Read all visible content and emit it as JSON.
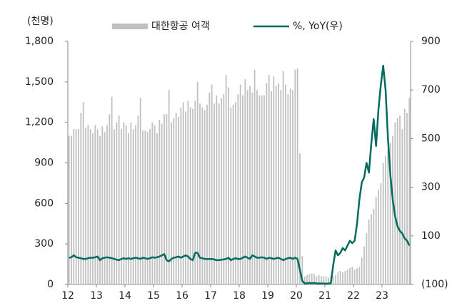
{
  "chart_data": {
    "type": "bar",
    "y_label": "(천명)",
    "categories": [
      "12",
      null,
      null,
      null,
      null,
      null,
      null,
      null,
      null,
      null,
      null,
      null,
      "13",
      null,
      null,
      null,
      null,
      null,
      null,
      null,
      null,
      null,
      null,
      null,
      "14",
      null,
      null,
      null,
      null,
      null,
      null,
      null,
      null,
      null,
      null,
      null,
      "15",
      null,
      null,
      null,
      null,
      null,
      null,
      null,
      null,
      null,
      null,
      null,
      "16",
      null,
      null,
      null,
      null,
      null,
      null,
      null,
      null,
      null,
      null,
      null,
      "17",
      null,
      null,
      null,
      null,
      null,
      null,
      null,
      null,
      null,
      null,
      null,
      "18",
      null,
      null,
      null,
      null,
      null,
      null,
      null,
      null,
      null,
      null,
      null,
      "19",
      null,
      null,
      null,
      null,
      null,
      null,
      null,
      null,
      null,
      null,
      null,
      "20",
      null,
      null,
      null,
      null,
      null,
      null,
      null,
      null,
      null,
      null,
      null,
      "21",
      null,
      null,
      null,
      null,
      null,
      null,
      null,
      null,
      null,
      null,
      null,
      "22",
      null,
      null,
      null,
      null,
      null,
      null,
      null,
      null,
      null,
      null,
      null,
      "23",
      null,
      null,
      null,
      null,
      null,
      null,
      null,
      null,
      null,
      null,
      null
    ],
    "series": [
      {
        "name": "대한항공 여객",
        "type": "bar",
        "color": "#c0c0c0",
        "values": [
          1100,
          1100,
          1150,
          1150,
          1150,
          1270,
          1350,
          1160,
          1180,
          1150,
          1120,
          1180,
          1150,
          1100,
          1170,
          1130,
          1180,
          1260,
          1390,
          1150,
          1200,
          1250,
          1150,
          1200,
          1180,
          1120,
          1200,
          1150,
          1180,
          1250,
          1380,
          1140,
          1140,
          1130,
          1150,
          1200,
          1180,
          1120,
          1220,
          1190,
          1260,
          1260,
          1440,
          1200,
          1230,
          1270,
          1240,
          1310,
          1350,
          1280,
          1360,
          1310,
          1300,
          1360,
          1500,
          1340,
          1310,
          1290,
          1330,
          1420,
          1480,
          1340,
          1400,
          1340,
          1380,
          1410,
          1550,
          1460,
          1310,
          1330,
          1350,
          1410,
          1480,
          1400,
          1520,
          1440,
          1470,
          1420,
          1590,
          1440,
          1400,
          1400,
          1400,
          1490,
          1550,
          1430,
          1540,
          1470,
          1490,
          1440,
          1580,
          1480,
          1410,
          1450,
          1440,
          1590,
          1600,
          970,
          210,
          60,
          70,
          80,
          80,
          80,
          60,
          70,
          60,
          60,
          60,
          50,
          60,
          60,
          70,
          90,
          100,
          90,
          100,
          110,
          120,
          130,
          110,
          120,
          130,
          200,
          280,
          380,
          480,
          520,
          560,
          650,
          700,
          750,
          900,
          950,
          1000,
          1050,
          1100,
          1200,
          1230,
          1250,
          1150,
          1300,
          1270,
          1380
        ]
      },
      {
        "name": "%, YoY(우)",
        "type": "line",
        "axis": "y2",
        "color": "#006b5f",
        "values": [
          10,
          12,
          20,
          12,
          10,
          8,
          5,
          5,
          8,
          10,
          10,
          12,
          15,
          0,
          8,
          10,
          12,
          10,
          8,
          5,
          2,
          0,
          5,
          8,
          5,
          8,
          5,
          8,
          10,
          8,
          5,
          10,
          8,
          5,
          8,
          12,
          10,
          12,
          15,
          20,
          25,
          0,
          -5,
          5,
          10,
          12,
          15,
          10,
          15,
          20,
          15,
          5,
          0,
          30,
          30,
          10,
          8,
          5,
          5,
          5,
          5,
          3,
          0,
          0,
          2,
          3,
          5,
          10,
          0,
          5,
          8,
          5,
          5,
          10,
          15,
          10,
          5,
          20,
          15,
          10,
          10,
          12,
          10,
          5,
          10,
          8,
          5,
          8,
          10,
          5,
          0,
          5,
          8,
          10,
          5,
          10,
          5,
          -40,
          -85,
          -96,
          -95,
          -94,
          -95,
          -94,
          -96,
          -96,
          -96,
          -96,
          -97,
          -96,
          -95,
          -20,
          40,
          20,
          30,
          50,
          40,
          60,
          80,
          70,
          80,
          150,
          250,
          320,
          340,
          400,
          360,
          480,
          580,
          470,
          620,
          720,
          800,
          700,
          500,
          350,
          250,
          180,
          140,
          120,
          110,
          90,
          80,
          60
        ]
      }
    ],
    "ylim": [
      0,
      1800
    ],
    "yticks": [
      0,
      300,
      600,
      900,
      {
        "value": 1200,
        "label": "1,200"
      },
      {
        "value": 1500,
        "label": "1,500"
      },
      {
        "value": 1800,
        "label": "1,800"
      }
    ],
    "y2lim": [
      -100,
      900
    ],
    "y2ticks": [
      {
        "value": -100,
        "label": "(100)"
      },
      100,
      300,
      500,
      700,
      900
    ]
  }
}
